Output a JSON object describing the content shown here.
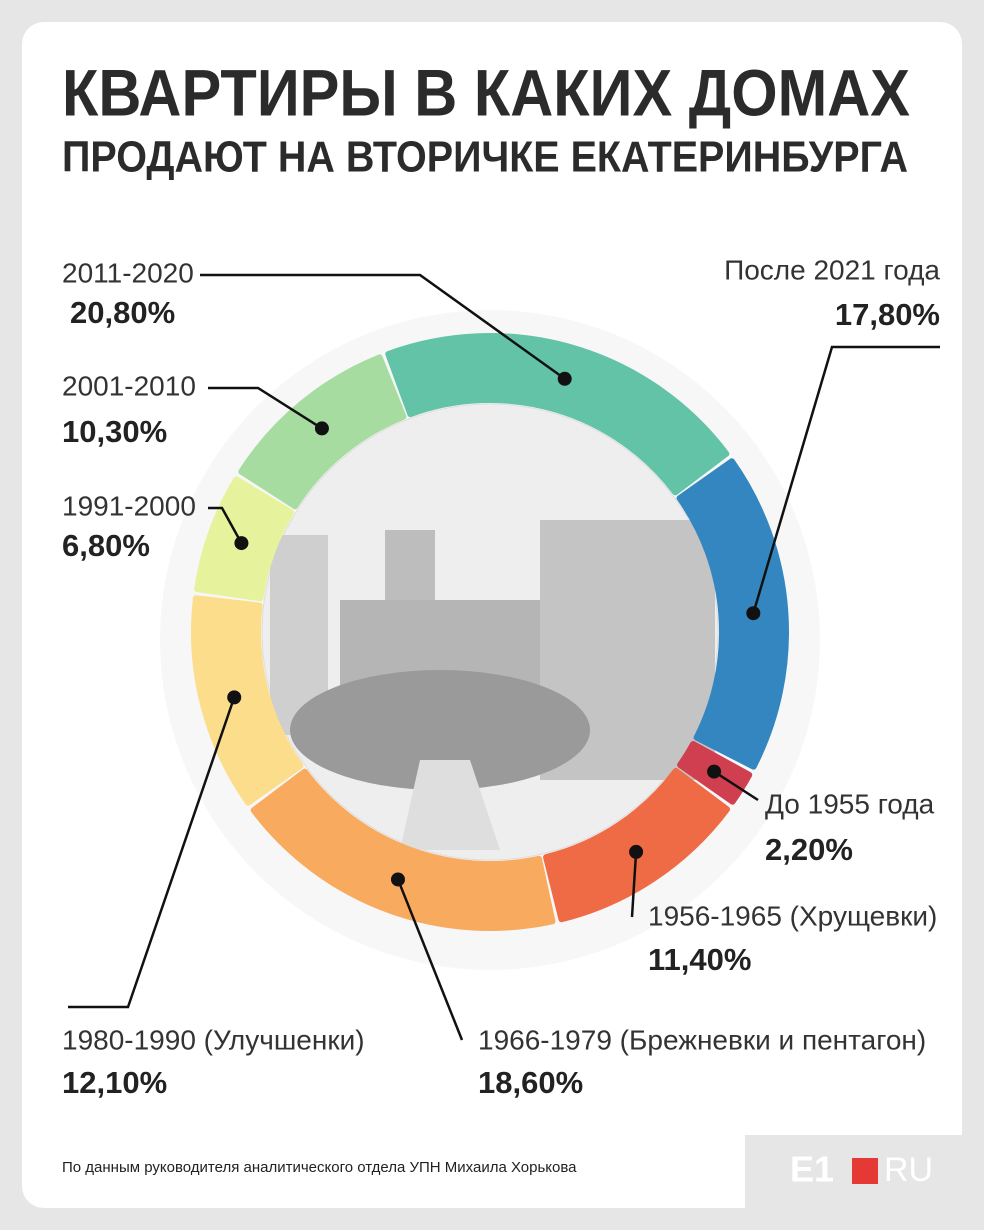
{
  "header": {
    "title_line1": "КВАРТИРЫ В КАКИХ ДОМАХ",
    "title_line2": "ПРОДАЮТ НА ВТОРИЧКЕ ЕКАТЕРИНБУРГА"
  },
  "chart_data": {
    "type": "donut",
    "categories": [
      "2011-2020",
      "После 2021 года",
      "До 1955 года",
      "1956-1965 (Хрущевки)",
      "1966-1979 (Брежневки и пентагон)",
      "1980-1990 (Улучшенки)",
      "1991-2000",
      "2001-2010"
    ],
    "values": [
      20.8,
      17.8,
      2.2,
      11.4,
      18.6,
      12.1,
      6.8,
      10.3
    ],
    "value_labels": [
      "20,80%",
      "17,80%",
      "2,20%",
      "11,40%",
      "18,60%",
      "12,10%",
      "6,80%",
      "10,30%"
    ],
    "colors": [
      "#62c3a7",
      "#3386bf",
      "#d03f50",
      "#ef6b45",
      "#f8ab5f",
      "#fbdd8c",
      "#e7f39c",
      "#a7dca1"
    ]
  },
  "footer": {
    "source": "По данным руководителя аналитического отдела УПН Михаила Хорькова",
    "logo_left": "E1",
    "logo_right": "RU"
  }
}
